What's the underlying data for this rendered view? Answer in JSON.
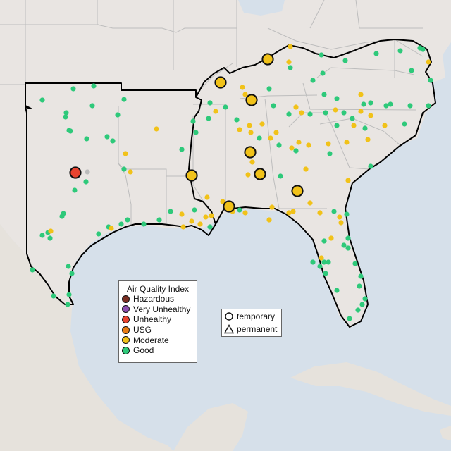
{
  "map": {
    "colors": {
      "land": "#e9e5e2",
      "water": "#d6e0ea",
      "state_border": "#bdbdbd",
      "epa_region_border": "#000000"
    }
  },
  "legend_aqi": {
    "title": "Air Quality Index",
    "items": [
      {
        "label": "Hazardous",
        "color": "#7a2e22"
      },
      {
        "label": "Very Unhealthy",
        "color": "#8c4fb0"
      },
      {
        "label": "Unhealthy",
        "color": "#e8432f"
      },
      {
        "label": "USG",
        "color": "#e87b14"
      },
      {
        "label": "Moderate",
        "color": "#f1c219"
      },
      {
        "label": "Good",
        "color": "#2ec97a"
      }
    ]
  },
  "legend_type": {
    "items": [
      {
        "label": "temporary",
        "icon": "circle-icon"
      },
      {
        "label": "permanent",
        "icon": "triangle-icon"
      }
    ]
  }
}
